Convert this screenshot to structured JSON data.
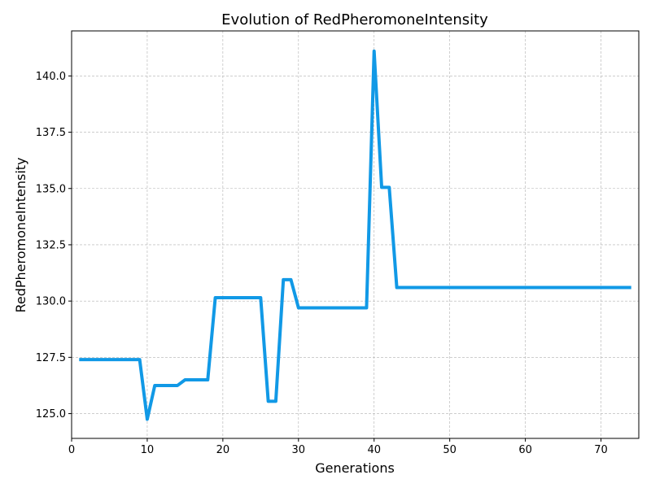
{
  "chart_data": {
    "type": "line",
    "title": "Evolution of RedPheromoneIntensity",
    "xlabel": "Generations",
    "ylabel": "RedPheromoneIntensity",
    "xlim": [
      0,
      75
    ],
    "ylim": [
      123.9,
      142.0
    ],
    "xticks": [
      0,
      10,
      20,
      30,
      40,
      50,
      60,
      70
    ],
    "yticks": [
      125.0,
      127.5,
      130.0,
      132.5,
      135.0,
      137.5,
      140.0
    ],
    "ytick_labels": [
      "125.0",
      "127.5",
      "130.0",
      "132.5",
      "135.0",
      "137.5",
      "140.0"
    ],
    "grid": true,
    "line_color": "#1199e6",
    "series": [
      {
        "x": [
          1,
          2,
          3,
          4,
          5,
          6,
          7,
          8,
          9,
          10,
          11,
          12,
          13,
          14,
          15,
          16,
          17,
          18,
          19,
          20,
          21,
          22,
          23,
          24,
          25,
          26,
          27,
          28,
          29,
          30,
          31,
          32,
          33,
          34,
          35,
          36,
          37,
          38,
          39,
          40,
          41,
          42,
          43,
          44,
          45,
          46,
          47,
          48,
          49,
          50,
          51,
          52,
          53,
          54,
          55,
          56,
          57,
          58,
          59,
          60,
          61,
          62,
          63,
          64,
          65,
          66,
          67,
          68,
          69,
          70,
          71,
          72,
          73,
          74
        ],
        "values": [
          127.4,
          127.4,
          127.4,
          127.4,
          127.4,
          127.4,
          127.4,
          127.4,
          127.4,
          124.75,
          126.25,
          126.25,
          126.25,
          126.25,
          126.5,
          126.5,
          126.5,
          126.5,
          130.15,
          130.15,
          130.15,
          130.15,
          130.15,
          130.15,
          130.15,
          125.55,
          125.55,
          130.95,
          130.95,
          129.7,
          129.7,
          129.7,
          129.7,
          129.7,
          129.7,
          129.7,
          129.7,
          129.7,
          129.7,
          141.1,
          135.05,
          135.05,
          130.6,
          130.6,
          130.6,
          130.6,
          130.6,
          130.6,
          130.6,
          130.6,
          130.6,
          130.6,
          130.6,
          130.6,
          130.6,
          130.6,
          130.6,
          130.6,
          130.6,
          130.6,
          130.6,
          130.6,
          130.6,
          130.6,
          130.6,
          130.6,
          130.6,
          130.6,
          130.6,
          130.6,
          130.6,
          130.6,
          130.6,
          130.6
        ]
      }
    ]
  }
}
